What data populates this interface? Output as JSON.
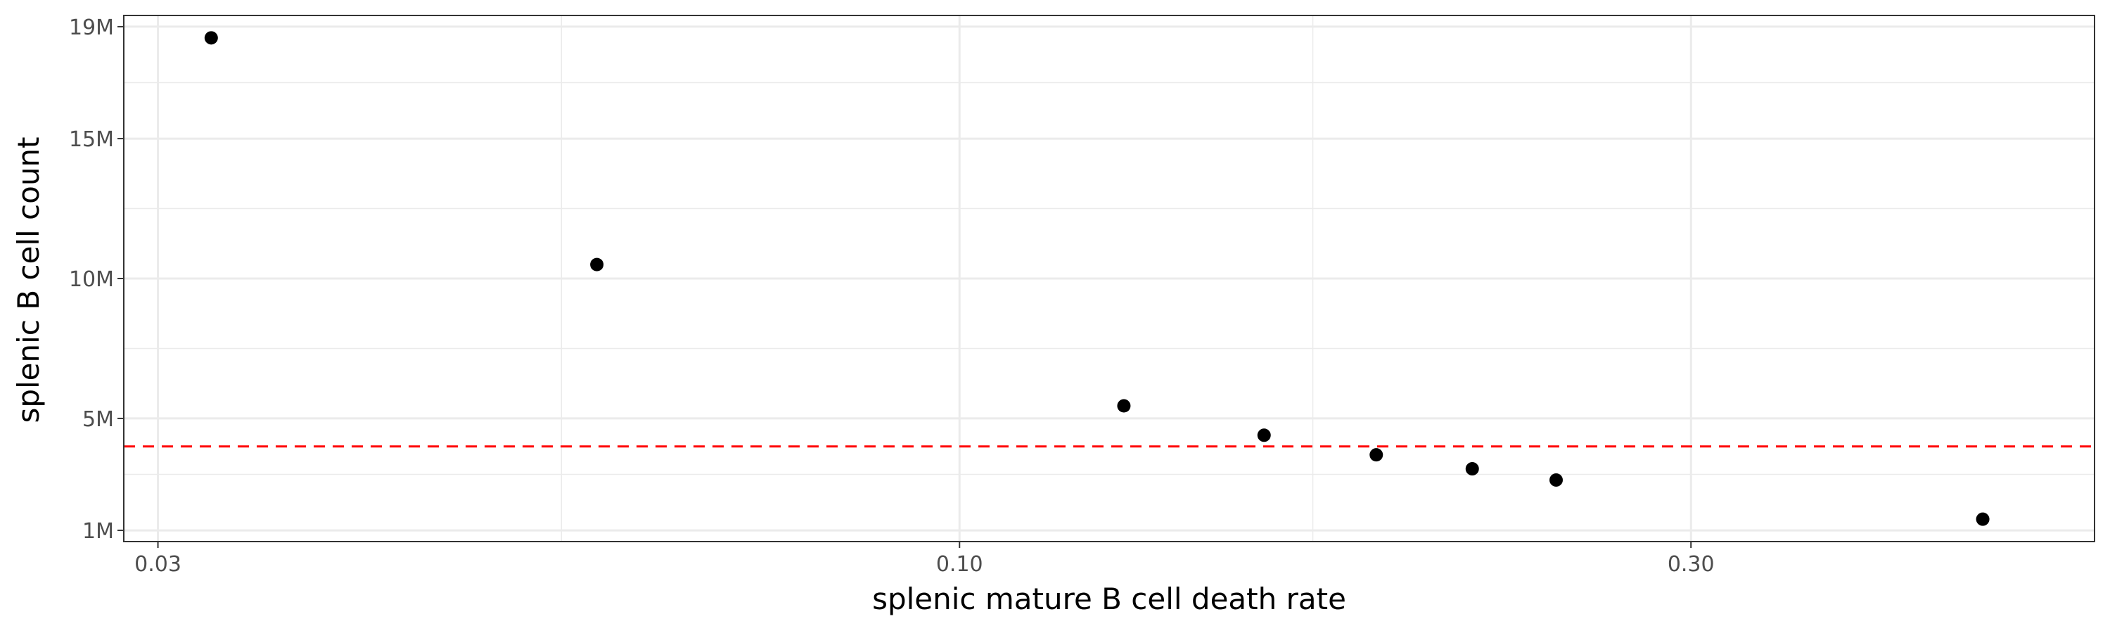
{
  "chart_data": {
    "type": "scatter",
    "title": "",
    "xlabel": "splenic mature B cell death rate",
    "ylabel": "splenic B cell count",
    "x_scale": "log10",
    "xlim": [
      0.0285,
      0.55
    ],
    "ylim": [
      0.6,
      19.4
    ],
    "x_ticks": [
      0.03,
      0.1,
      0.3
    ],
    "x_tick_labels": [
      "0.03",
      "0.10",
      "0.30"
    ],
    "x_minor_ticks": [
      0.055,
      0.17
    ],
    "y_ticks": [
      1,
      5,
      10,
      15,
      19
    ],
    "y_tick_labels": [
      "1M",
      "5M",
      "10M",
      "15M",
      "19M"
    ],
    "y_minor_ticks": [
      3,
      7.5,
      12.5,
      17
    ],
    "y_unit": "millions",
    "grid": true,
    "points": [
      {
        "x": 0.0325,
        "y": 18.6
      },
      {
        "x": 0.058,
        "y": 10.5
      },
      {
        "x": 0.128,
        "y": 5.45
      },
      {
        "x": 0.158,
        "y": 4.4
      },
      {
        "x": 0.187,
        "y": 3.7
      },
      {
        "x": 0.216,
        "y": 3.2
      },
      {
        "x": 0.245,
        "y": 2.8
      },
      {
        "x": 0.465,
        "y": 1.4
      }
    ],
    "reference_line": {
      "y": 4.0,
      "style": "dashed",
      "color": "#ff0000"
    },
    "colors": {
      "points": "#000000",
      "panel_border": "#333333",
      "grid": "#ebebeb"
    }
  }
}
